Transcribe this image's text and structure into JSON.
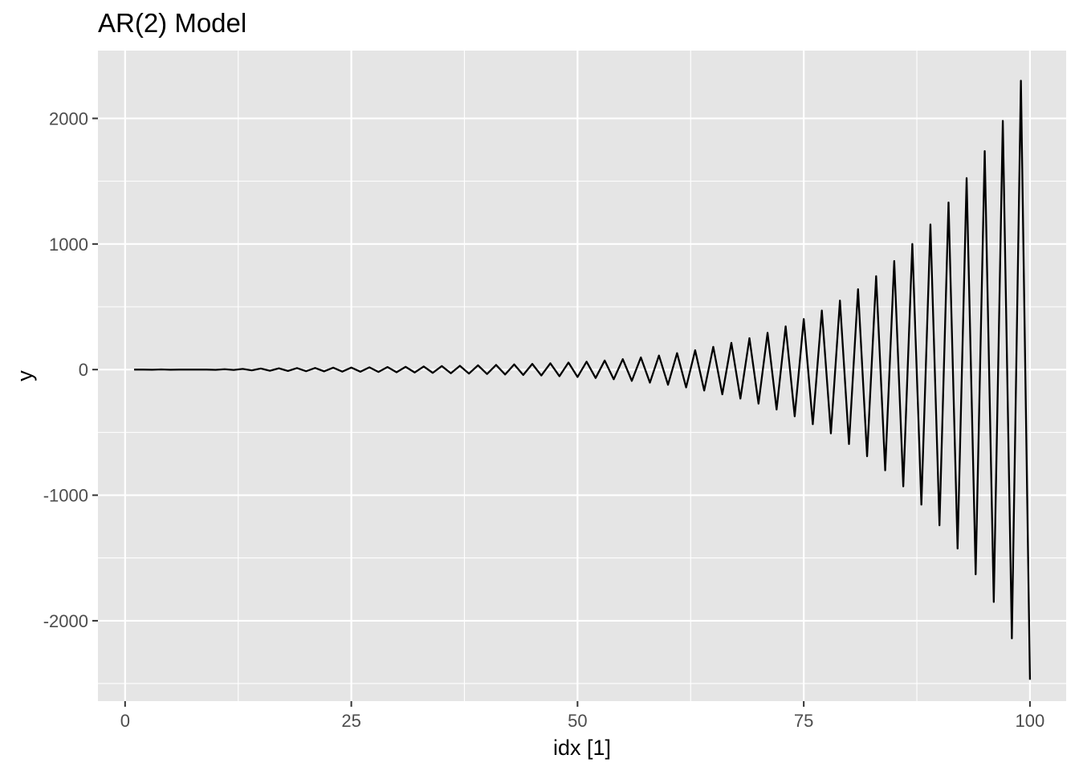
{
  "chart_data": {
    "type": "line",
    "title": "AR(2) Model",
    "xlabel": "idx [1]",
    "ylabel": "y",
    "xlim": [
      -3,
      104
    ],
    "ylim": [
      -2640,
      2540
    ],
    "x_ticks": [
      0,
      25,
      50,
      75,
      100
    ],
    "x_tick_labels": [
      "0",
      "25",
      "50",
      "75",
      "100"
    ],
    "x_minor_ticks": [
      12.5,
      37.5,
      62.5,
      87.5
    ],
    "y_ticks": [
      -2000,
      -1000,
      0,
      1000,
      2000
    ],
    "y_tick_labels": [
      "-2000",
      "-1000",
      "0",
      "1000",
      "2000"
    ],
    "y_minor_ticks": [
      -2500,
      -1500,
      -500,
      500,
      1500
    ],
    "grid": true,
    "background_color": "#e5e5e5",
    "grid_color": "#ffffff",
    "line_color": "#000000",
    "series": [
      {
        "x": [
          1,
          2,
          3,
          4,
          5,
          6,
          7,
          8,
          9,
          10,
          11,
          12,
          13,
          14,
          15,
          16,
          17,
          18,
          19,
          20,
          21,
          22,
          23,
          24,
          25,
          26,
          27,
          28,
          29,
          30,
          31,
          32,
          33,
          34,
          35,
          36,
          37,
          38,
          39,
          40,
          41,
          42,
          43,
          44,
          45,
          46,
          47,
          48,
          49,
          50,
          51,
          52,
          53,
          54,
          55,
          56,
          57,
          58,
          59,
          60,
          61,
          62,
          63,
          64,
          65,
          66,
          67,
          68,
          69,
          70,
          71,
          72,
          73,
          74,
          75,
          76,
          77,
          78,
          79,
          80,
          81,
          82,
          83,
          84,
          85,
          86,
          87,
          88,
          89,
          90,
          91,
          92,
          93,
          94,
          95,
          96,
          97,
          98,
          99,
          100
        ],
        "values": [
          0,
          0,
          -1,
          1,
          -1,
          0,
          0,
          0,
          0,
          -2,
          3,
          -3,
          5,
          -6,
          8,
          -9,
          10,
          -11,
          12,
          -13,
          13,
          -14,
          15,
          -16,
          16,
          -17,
          18,
          -19,
          20,
          -21,
          22,
          -23,
          25,
          -26,
          28,
          -29,
          30,
          -32,
          34,
          -35,
          37,
          -39,
          41,
          -43,
          45,
          -47,
          50,
          -53,
          56,
          -59,
          63,
          -67,
          72,
          -77,
          83,
          -90,
          97,
          -104,
          112,
          -121,
          131,
          -142,
          154,
          -167,
          181,
          -197,
          213,
          -231,
          250,
          -271,
          293,
          -318,
          344,
          -372,
          402,
          -435,
          470,
          -508,
          549,
          -593,
          640,
          -690,
          744,
          -802,
          864,
          -930,
          1000,
          -1075,
          1155,
          -1240,
          1330,
          -1425,
          1525,
          -1630,
          1740,
          -1850,
          1980,
          -2140,
          2300,
          -2470
        ]
      }
    ]
  }
}
